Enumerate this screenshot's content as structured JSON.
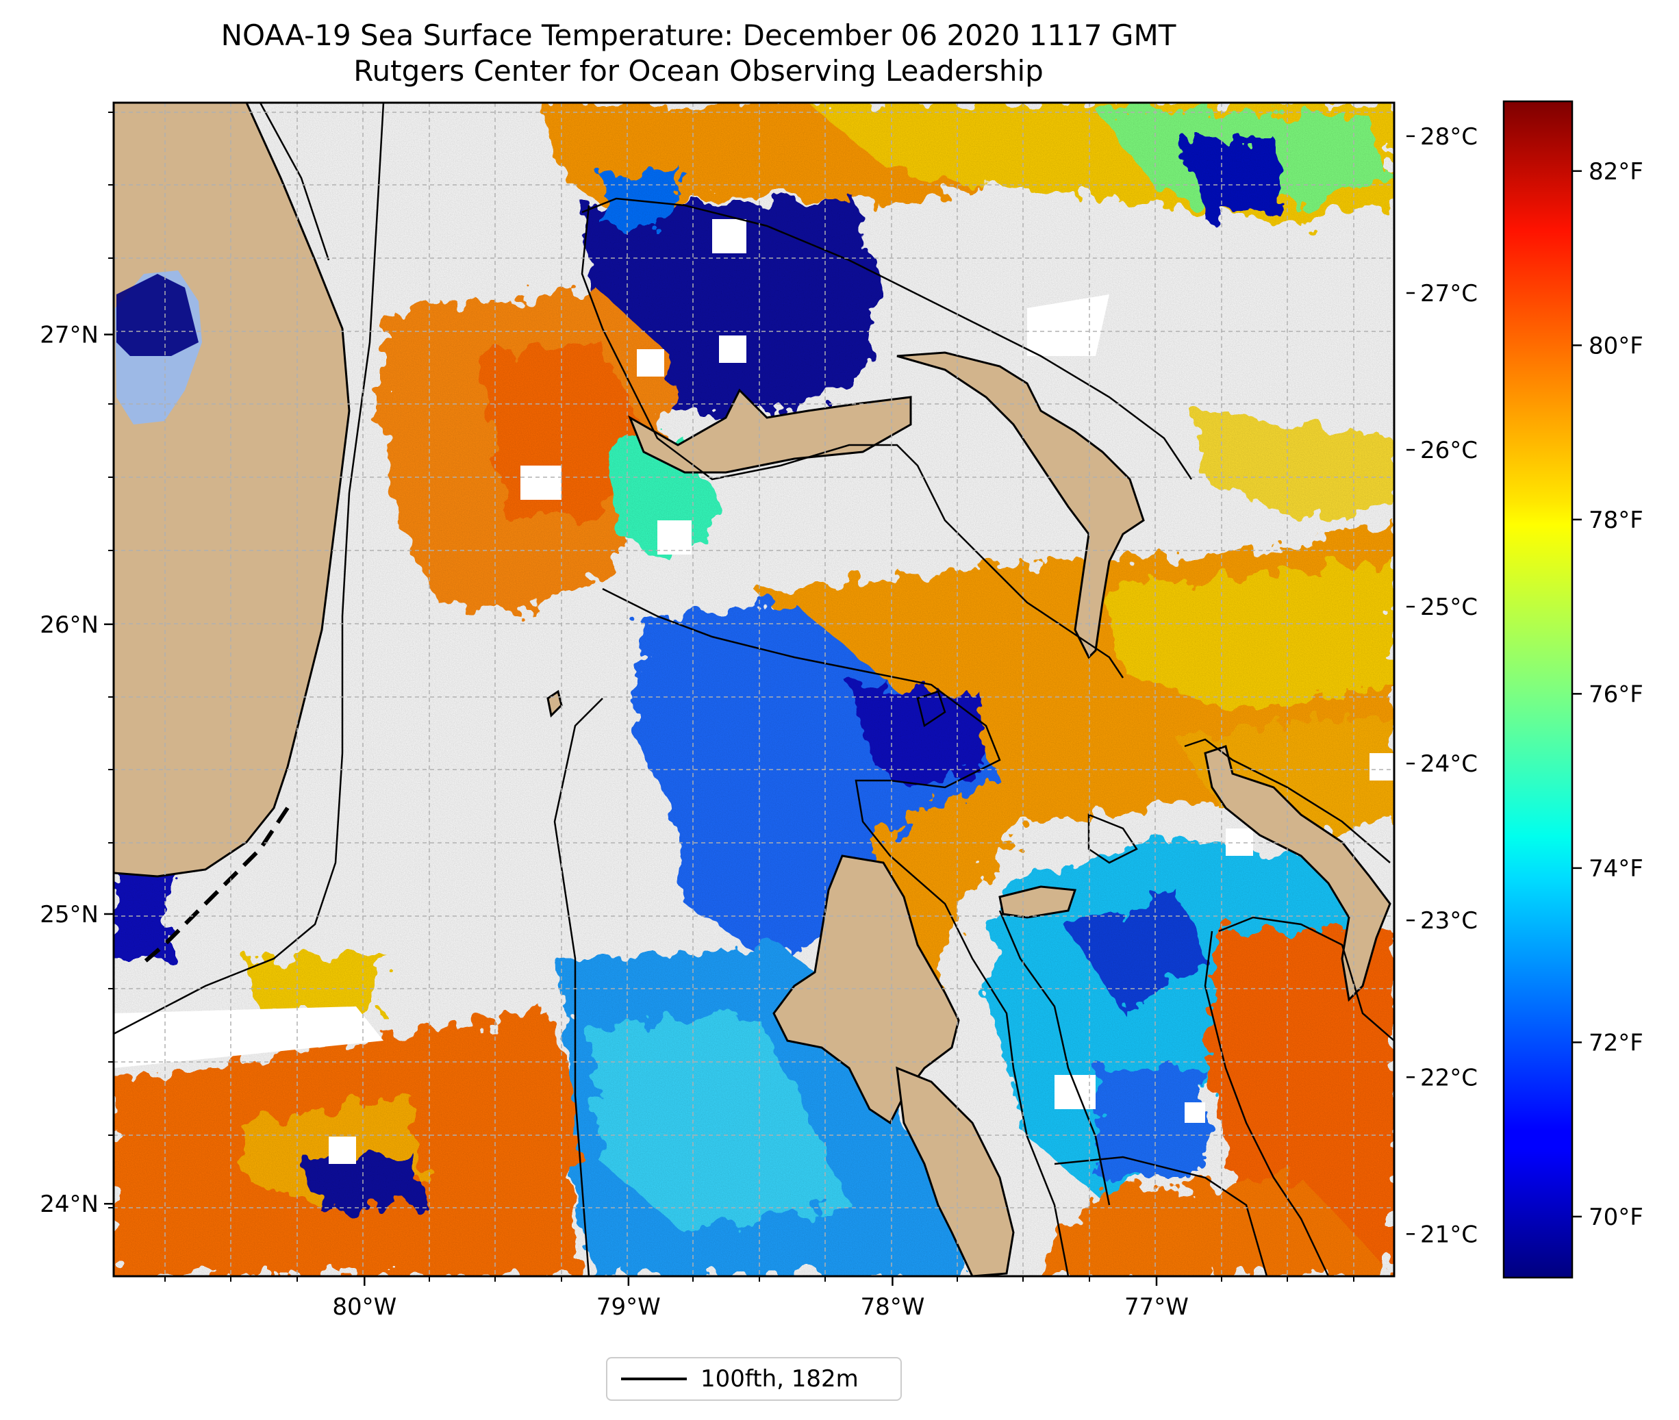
{
  "title": "NOAA-19 Sea Surface Temperature: December 06 2020 1117 GMT",
  "subtitle": "Rutgers Center for Ocean Observing Leadership",
  "map": {
    "lon_range": [
      -80.95,
      -76.1
    ],
    "lat_range": [
      23.75,
      27.8
    ],
    "lon_ticks": [
      {
        "value": -80,
        "label": "80°W"
      },
      {
        "value": -79,
        "label": "79°W"
      },
      {
        "value": -78,
        "label": "78°W"
      },
      {
        "value": -77,
        "label": "77°W"
      }
    ],
    "lat_ticks": [
      {
        "value": 24,
        "label": "24°N"
      },
      {
        "value": 25,
        "label": "25°N"
      },
      {
        "value": 26,
        "label": "26°N"
      },
      {
        "value": 27,
        "label": "27°N"
      }
    ],
    "gridlines": true,
    "colors": {
      "land": "#d2b48c",
      "lake": "#9db9e6",
      "cloud_mask": "#ffffff",
      "grid": "#b0b0b0"
    }
  },
  "colorbar": {
    "colormap": "jet",
    "celsius_ticks": [
      {
        "value": 21,
        "label": "21°C"
      },
      {
        "value": 22,
        "label": "22°C"
      },
      {
        "value": 23,
        "label": "23°C"
      },
      {
        "value": 24,
        "label": "24°C"
      },
      {
        "value": 25,
        "label": "25°C"
      },
      {
        "value": 26,
        "label": "26°C"
      },
      {
        "value": 27,
        "label": "27°C"
      },
      {
        "value": 28,
        "label": "28°C"
      }
    ],
    "fahrenheit_ticks": [
      {
        "value": 70,
        "label": "70°F"
      },
      {
        "value": 72,
        "label": "72°F"
      },
      {
        "value": 74,
        "label": "74°F"
      },
      {
        "value": 76,
        "label": "76°F"
      },
      {
        "value": 78,
        "label": "78°F"
      },
      {
        "value": 80,
        "label": "80°F"
      },
      {
        "value": 82,
        "label": "82°F"
      }
    ],
    "fahrenheit_range": [
      69.3,
      82.8
    ]
  },
  "legend": {
    "label": "100fth, 182m"
  }
}
